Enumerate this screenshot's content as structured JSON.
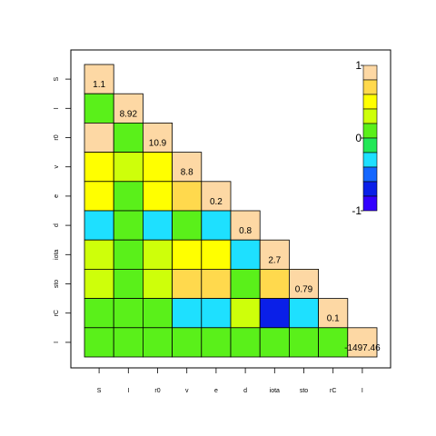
{
  "chart_data": {
    "type": "heatmap",
    "title": "",
    "xlabel": "",
    "ylabel": "",
    "variables": [
      "S",
      "I",
      "r0",
      "v",
      "e",
      "d",
      "iota",
      "sto",
      "rC",
      "I"
    ],
    "x_tick_labels": [
      "S",
      "I",
      "r0",
      "v",
      "e",
      "d",
      "iota",
      "sto",
      "rC",
      "I"
    ],
    "y_tick_labels": [
      "S",
      "I",
      "r0",
      "v",
      "e",
      "d",
      "iota",
      "sto",
      "rC",
      "I"
    ],
    "diagonal_labels": [
      "1.1",
      "8.92",
      "10.9",
      "8.8",
      "0.2",
      "0.8",
      "2.7",
      "0.79",
      "0.1",
      "-1497.46"
    ],
    "diagonal_color": "#FDD8A4",
    "correlations": [
      [],
      [
        0.1
      ],
      [
        0.95,
        0.15
      ],
      [
        0.5,
        0.3,
        0.5
      ],
      [
        0.5,
        0.15,
        0.5,
        0.75
      ],
      [
        -0.3,
        0.15,
        -0.3,
        0.1,
        -0.3
      ],
      [
        0.35,
        0.1,
        0.35,
        0.5,
        0.5,
        -0.3
      ],
      [
        0.35,
        0.1,
        0.35,
        0.7,
        0.7,
        0.1,
        0.7
      ],
      [
        0.1,
        0.15,
        0.1,
        -0.3,
        -0.3,
        0.35,
        -0.7,
        -0.3
      ],
      [
        0.15,
        0.15,
        0.15,
        0.15,
        0.15,
        0.1,
        0.15,
        0.15,
        0.1
      ]
    ],
    "color_scale": {
      "range": [
        -1,
        1
      ],
      "breaks": [
        -1,
        -0.8,
        -0.6,
        -0.4,
        -0.2,
        0,
        0.2,
        0.4,
        0.6,
        0.8,
        1
      ],
      "colors": [
        "#3300FF",
        "#0A1FE8",
        "#1467FF",
        "#1EE0FF",
        "#22E857",
        "#5AF01A",
        "#CEFF0A",
        "#FFFF00",
        "#FFD94D",
        "#FDD8A4"
      ]
    },
    "legend": {
      "position": "top-right",
      "tick_labels": [
        "1",
        "0",
        "-1"
      ],
      "tick_values": [
        1,
        0,
        -1
      ]
    }
  }
}
